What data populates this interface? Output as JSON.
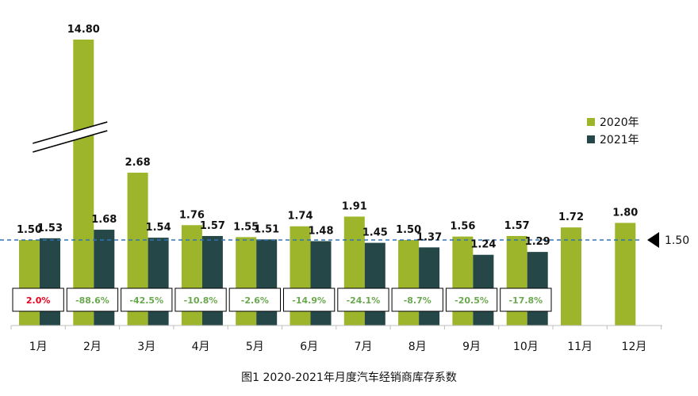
{
  "chart_data": {
    "type": "bar",
    "title": "图1  2020-2021年月度汽车经销商库存系数",
    "categories": [
      "1月",
      "2月",
      "3月",
      "4月",
      "5月",
      "6月",
      "7月",
      "8月",
      "9月",
      "10月",
      "11月",
      "12月"
    ],
    "series": [
      {
        "name": "2020年",
        "color": "#9cb52a",
        "values": [
          1.5,
          14.8,
          2.68,
          1.76,
          1.55,
          1.74,
          1.91,
          1.5,
          1.56,
          1.57,
          1.72,
          1.8
        ],
        "labels": [
          "1.50",
          "14.80",
          "2.68",
          "1.76",
          "1.55",
          "1.74",
          "1.91",
          "1.50",
          "1.56",
          "1.57",
          "1.72",
          "1.80"
        ]
      },
      {
        "name": "2021年",
        "color": "#254747",
        "values": [
          1.53,
          1.68,
          1.54,
          1.57,
          1.51,
          1.48,
          1.45,
          1.37,
          1.24,
          1.29,
          null,
          null
        ],
        "labels": [
          "1.53",
          "1.68",
          "1.54",
          "1.57",
          "1.51",
          "1.48",
          "1.45",
          "1.37",
          "1.24",
          "1.29",
          "",
          ""
        ]
      }
    ],
    "yoy_change": [
      "2.0%",
      "-88.6%",
      "-42.5%",
      "-10.8%",
      "-2.6%",
      "-14.9%",
      "-24.1%",
      "-8.7%",
      "-20.5%",
      "-17.8%"
    ],
    "yoy_colors": [
      "#e8001c",
      "#6aa84f",
      "#6aa84f",
      "#6aa84f",
      "#6aa84f",
      "#6aa84f",
      "#6aa84f",
      "#6aa84f",
      "#6aa84f",
      "#6aa84f"
    ],
    "reference_line": {
      "value": 1.5,
      "label": "1.50",
      "color": "#2e75b6"
    },
    "axis_break": {
      "category": "2月"
    },
    "legend_position": "right",
    "grid": false
  }
}
